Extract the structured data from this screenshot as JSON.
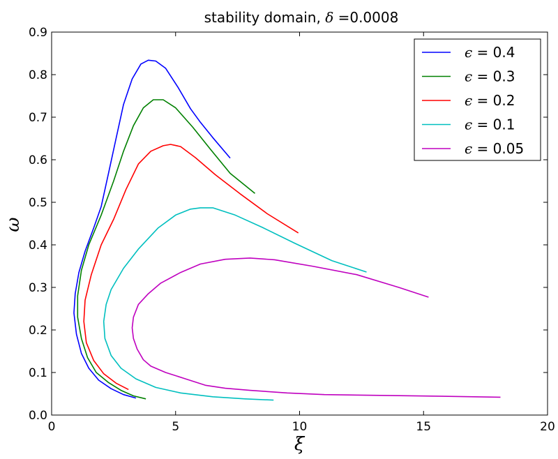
{
  "chart_data": {
    "type": "line",
    "title_prefix": "stability domain, ",
    "title_symbol": "δ",
    "title_suffix": " =0.0008",
    "xlabel": "ξ",
    "ylabel": "ω",
    "xlim": [
      0,
      20
    ],
    "ylim": [
      0,
      0.9
    ],
    "xticks": [
      "0",
      "5",
      "10",
      "15",
      "20"
    ],
    "yticks": [
      "0.0",
      "0.1",
      "0.2",
      "0.3",
      "0.4",
      "0.5",
      "0.6",
      "0.7",
      "0.8",
      "0.9"
    ],
    "grid": false,
    "legend_position": "top-right",
    "series": [
      {
        "name": "ϵ = 0.4",
        "symbol": "ϵ",
        "label_value": " = 0.4",
        "color": "#0000ff",
        "points": [
          [
            3.4,
            0.04
          ],
          [
            2.9,
            0.048
          ],
          [
            2.4,
            0.062
          ],
          [
            1.9,
            0.082
          ],
          [
            1.5,
            0.11
          ],
          [
            1.2,
            0.145
          ],
          [
            1.0,
            0.19
          ],
          [
            0.9,
            0.24
          ],
          [
            0.95,
            0.285
          ],
          [
            1.1,
            0.335
          ],
          [
            1.35,
            0.385
          ],
          [
            1.7,
            0.44
          ],
          [
            2.0,
            0.49
          ],
          [
            2.3,
            0.57
          ],
          [
            2.6,
            0.65
          ],
          [
            2.9,
            0.73
          ],
          [
            3.25,
            0.79
          ],
          [
            3.6,
            0.825
          ],
          [
            3.9,
            0.834
          ],
          [
            4.2,
            0.832
          ],
          [
            4.6,
            0.815
          ],
          [
            5.1,
            0.77
          ],
          [
            5.6,
            0.72
          ],
          [
            6.0,
            0.688
          ],
          [
            6.5,
            0.652
          ],
          [
            7.2,
            0.604
          ]
        ]
      },
      {
        "name": "ϵ = 0.3",
        "symbol": "ϵ",
        "label_value": " = 0.3",
        "color": "#008000",
        "points": [
          [
            3.8,
            0.038
          ],
          [
            3.3,
            0.045
          ],
          [
            2.8,
            0.058
          ],
          [
            2.3,
            0.076
          ],
          [
            1.8,
            0.1
          ],
          [
            1.45,
            0.135
          ],
          [
            1.2,
            0.18
          ],
          [
            1.05,
            0.23
          ],
          [
            1.05,
            0.28
          ],
          [
            1.2,
            0.34
          ],
          [
            1.5,
            0.4
          ],
          [
            2.0,
            0.47
          ],
          [
            2.5,
            0.55
          ],
          [
            2.9,
            0.62
          ],
          [
            3.3,
            0.68
          ],
          [
            3.7,
            0.722
          ],
          [
            4.1,
            0.741
          ],
          [
            4.5,
            0.741
          ],
          [
            5.0,
            0.722
          ],
          [
            5.7,
            0.676
          ],
          [
            6.4,
            0.625
          ],
          [
            7.2,
            0.568
          ],
          [
            8.2,
            0.521
          ]
        ]
      },
      {
        "name": "ϵ = 0.2",
        "symbol": "ϵ",
        "label_value": " = 0.2",
        "color": "#ff0000",
        "points": [
          [
            3.1,
            0.06
          ],
          [
            2.6,
            0.075
          ],
          [
            2.1,
            0.097
          ],
          [
            1.7,
            0.128
          ],
          [
            1.4,
            0.17
          ],
          [
            1.3,
            0.22
          ],
          [
            1.35,
            0.27
          ],
          [
            1.6,
            0.33
          ],
          [
            2.0,
            0.4
          ],
          [
            2.5,
            0.46
          ],
          [
            3.0,
            0.53
          ],
          [
            3.5,
            0.59
          ],
          [
            4.0,
            0.62
          ],
          [
            4.5,
            0.633
          ],
          [
            4.8,
            0.636
          ],
          [
            5.2,
            0.631
          ],
          [
            5.8,
            0.605
          ],
          [
            6.6,
            0.565
          ],
          [
            7.6,
            0.52
          ],
          [
            8.7,
            0.473
          ],
          [
            9.95,
            0.428
          ]
        ]
      },
      {
        "name": "ϵ = 0.1",
        "symbol": "ϵ",
        "label_value": " = 0.1",
        "color": "#00bfbf",
        "points": [
          [
            8.95,
            0.035
          ],
          [
            7.8,
            0.038
          ],
          [
            6.5,
            0.043
          ],
          [
            5.2,
            0.052
          ],
          [
            4.2,
            0.065
          ],
          [
            3.4,
            0.085
          ],
          [
            2.8,
            0.11
          ],
          [
            2.4,
            0.14
          ],
          [
            2.15,
            0.18
          ],
          [
            2.1,
            0.22
          ],
          [
            2.2,
            0.26
          ],
          [
            2.4,
            0.295
          ],
          [
            2.9,
            0.345
          ],
          [
            3.5,
            0.39
          ],
          [
            4.3,
            0.44
          ],
          [
            5.0,
            0.47
          ],
          [
            5.6,
            0.484
          ],
          [
            6.0,
            0.487
          ],
          [
            6.5,
            0.487
          ],
          [
            7.4,
            0.47
          ],
          [
            8.5,
            0.441
          ],
          [
            9.8,
            0.404
          ],
          [
            11.3,
            0.363
          ],
          [
            12.7,
            0.336
          ]
        ]
      },
      {
        "name": "ϵ = 0.05",
        "symbol": "ϵ",
        "label_value": " = 0.05",
        "color": "#bf00bf",
        "points": [
          [
            18.1,
            0.042
          ],
          [
            16.0,
            0.044
          ],
          [
            13.5,
            0.046
          ],
          [
            11.0,
            0.048
          ],
          [
            9.5,
            0.052
          ],
          [
            8.0,
            0.058
          ],
          [
            7.0,
            0.063
          ],
          [
            6.2,
            0.07
          ],
          [
            5.4,
            0.085
          ],
          [
            4.6,
            0.1
          ],
          [
            4.0,
            0.115
          ],
          [
            3.7,
            0.13
          ],
          [
            3.45,
            0.155
          ],
          [
            3.3,
            0.18
          ],
          [
            3.25,
            0.205
          ],
          [
            3.3,
            0.23
          ],
          [
            3.5,
            0.26
          ],
          [
            3.9,
            0.285
          ],
          [
            4.4,
            0.31
          ],
          [
            5.2,
            0.335
          ],
          [
            6.0,
            0.355
          ],
          [
            7.0,
            0.366
          ],
          [
            8.0,
            0.369
          ],
          [
            9.0,
            0.365
          ],
          [
            10.5,
            0.35
          ],
          [
            12.3,
            0.33
          ],
          [
            14.0,
            0.3
          ],
          [
            15.2,
            0.277
          ]
        ]
      }
    ]
  }
}
